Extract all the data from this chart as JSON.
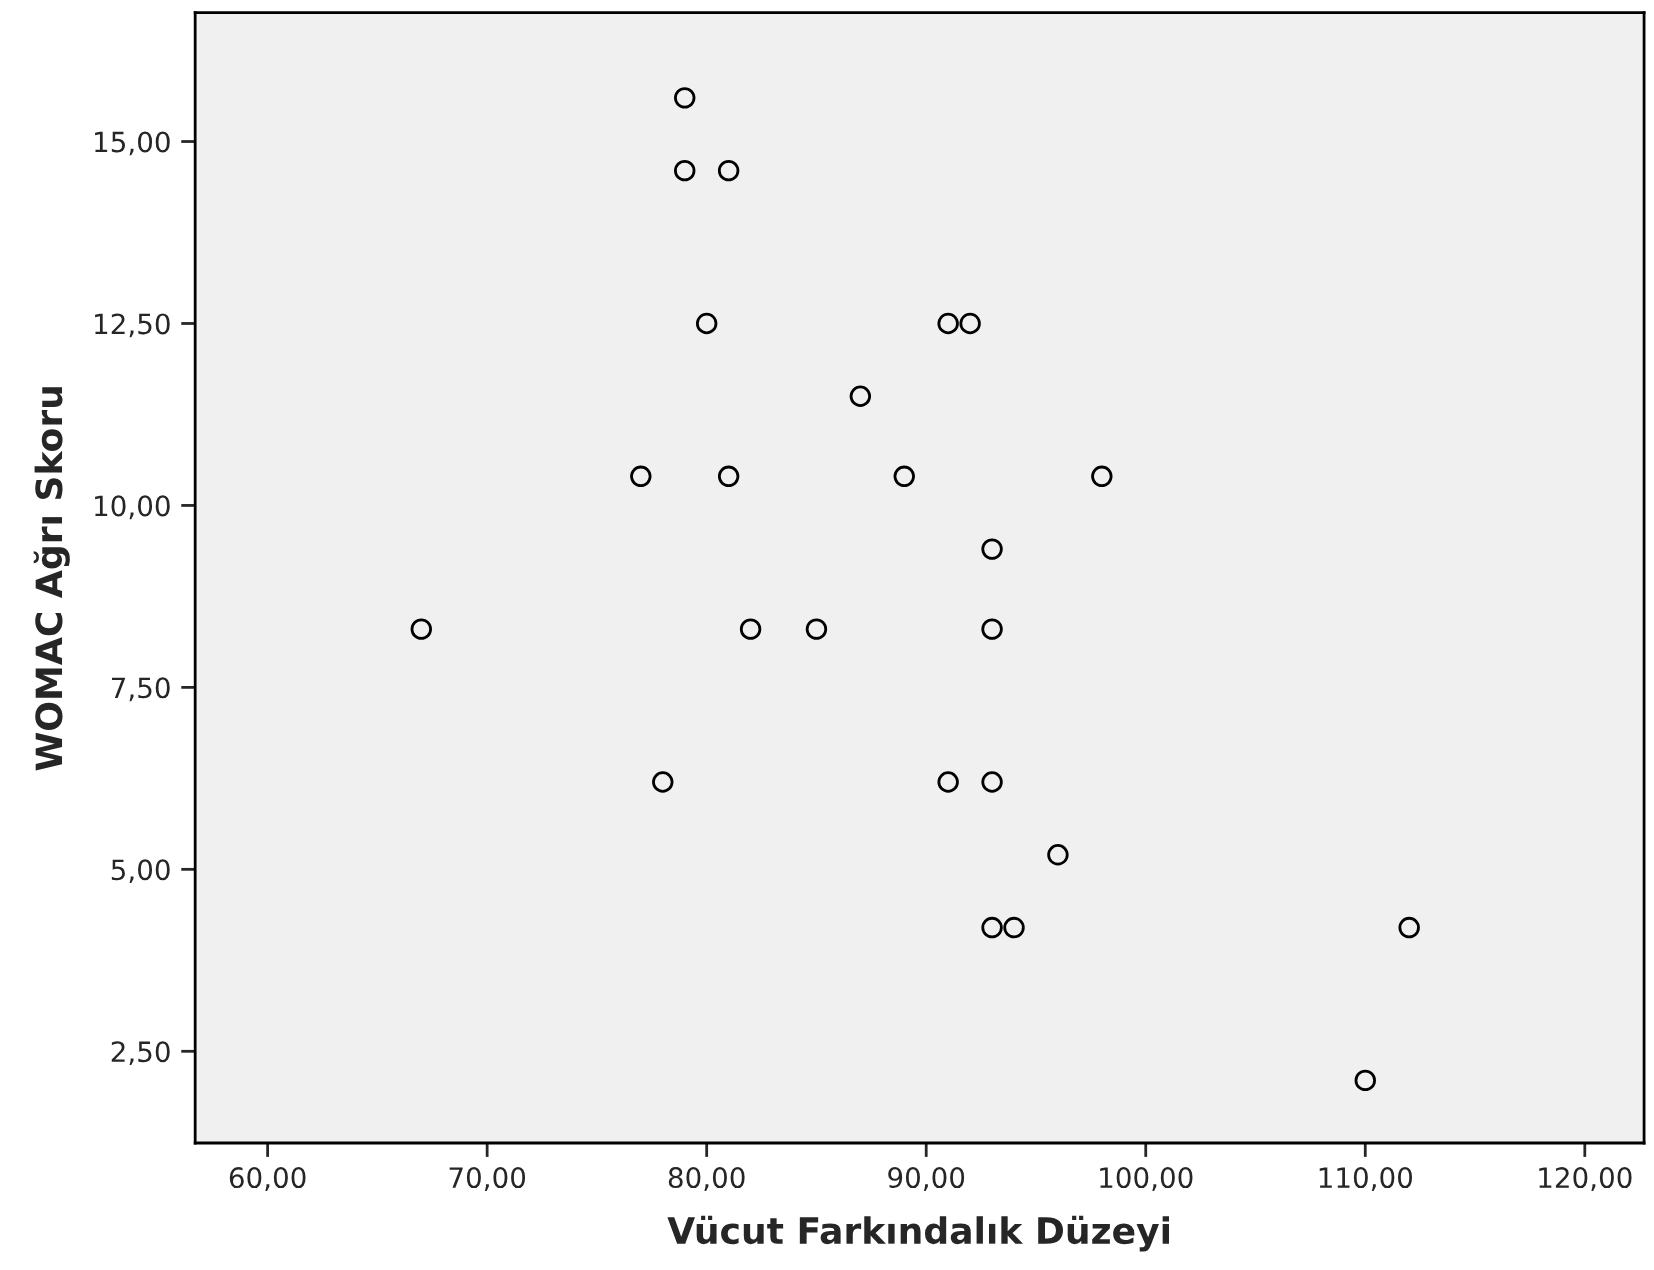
{
  "chart_data": {
    "type": "scatter",
    "xlabel": "Vücut Farkındalık Düzeyi",
    "ylabel": "WOMAC Ağrı Skoru",
    "x": [
      79,
      79,
      81,
      80,
      91,
      92,
      87,
      77,
      81,
      89,
      98,
      93,
      67,
      82,
      85,
      93,
      78,
      91,
      93,
      96,
      93,
      94,
      112,
      110
    ],
    "series": [
      {
        "color": "#000000",
        "values": [
          15.6,
          14.6,
          14.6,
          12.5,
          12.5,
          12.5,
          11.5,
          10.4,
          10.4,
          10.4,
          10.4,
          9.4,
          8.3,
          8.3,
          8.3,
          8.3,
          6.2,
          6.2,
          6.2,
          5.2,
          4.2,
          4.2,
          4.2,
          2.1
        ]
      }
    ],
    "xlim": [
      56.7,
      122.7
    ],
    "ylim": [
      1.24,
      16.77
    ],
    "xticks": [
      {
        "value": 60,
        "label": "60,00"
      },
      {
        "value": 70,
        "label": "70,00"
      },
      {
        "value": 80,
        "label": "80,00"
      },
      {
        "value": 90,
        "label": "90,00"
      },
      {
        "value": 100,
        "label": "100,00"
      },
      {
        "value": 110,
        "label": "110,00"
      },
      {
        "value": 120,
        "label": "120,00"
      }
    ],
    "yticks": [
      {
        "value": 2.5,
        "label": "2,50"
      },
      {
        "value": 5,
        "label": "5,00"
      },
      {
        "value": 7.5,
        "label": "7,50"
      },
      {
        "value": 10,
        "label": "10,00"
      },
      {
        "value": 12.5,
        "label": "12,50"
      },
      {
        "value": 15,
        "label": "15,00"
      }
    ],
    "marker": "circle",
    "grid": false,
    "legend": false
  }
}
